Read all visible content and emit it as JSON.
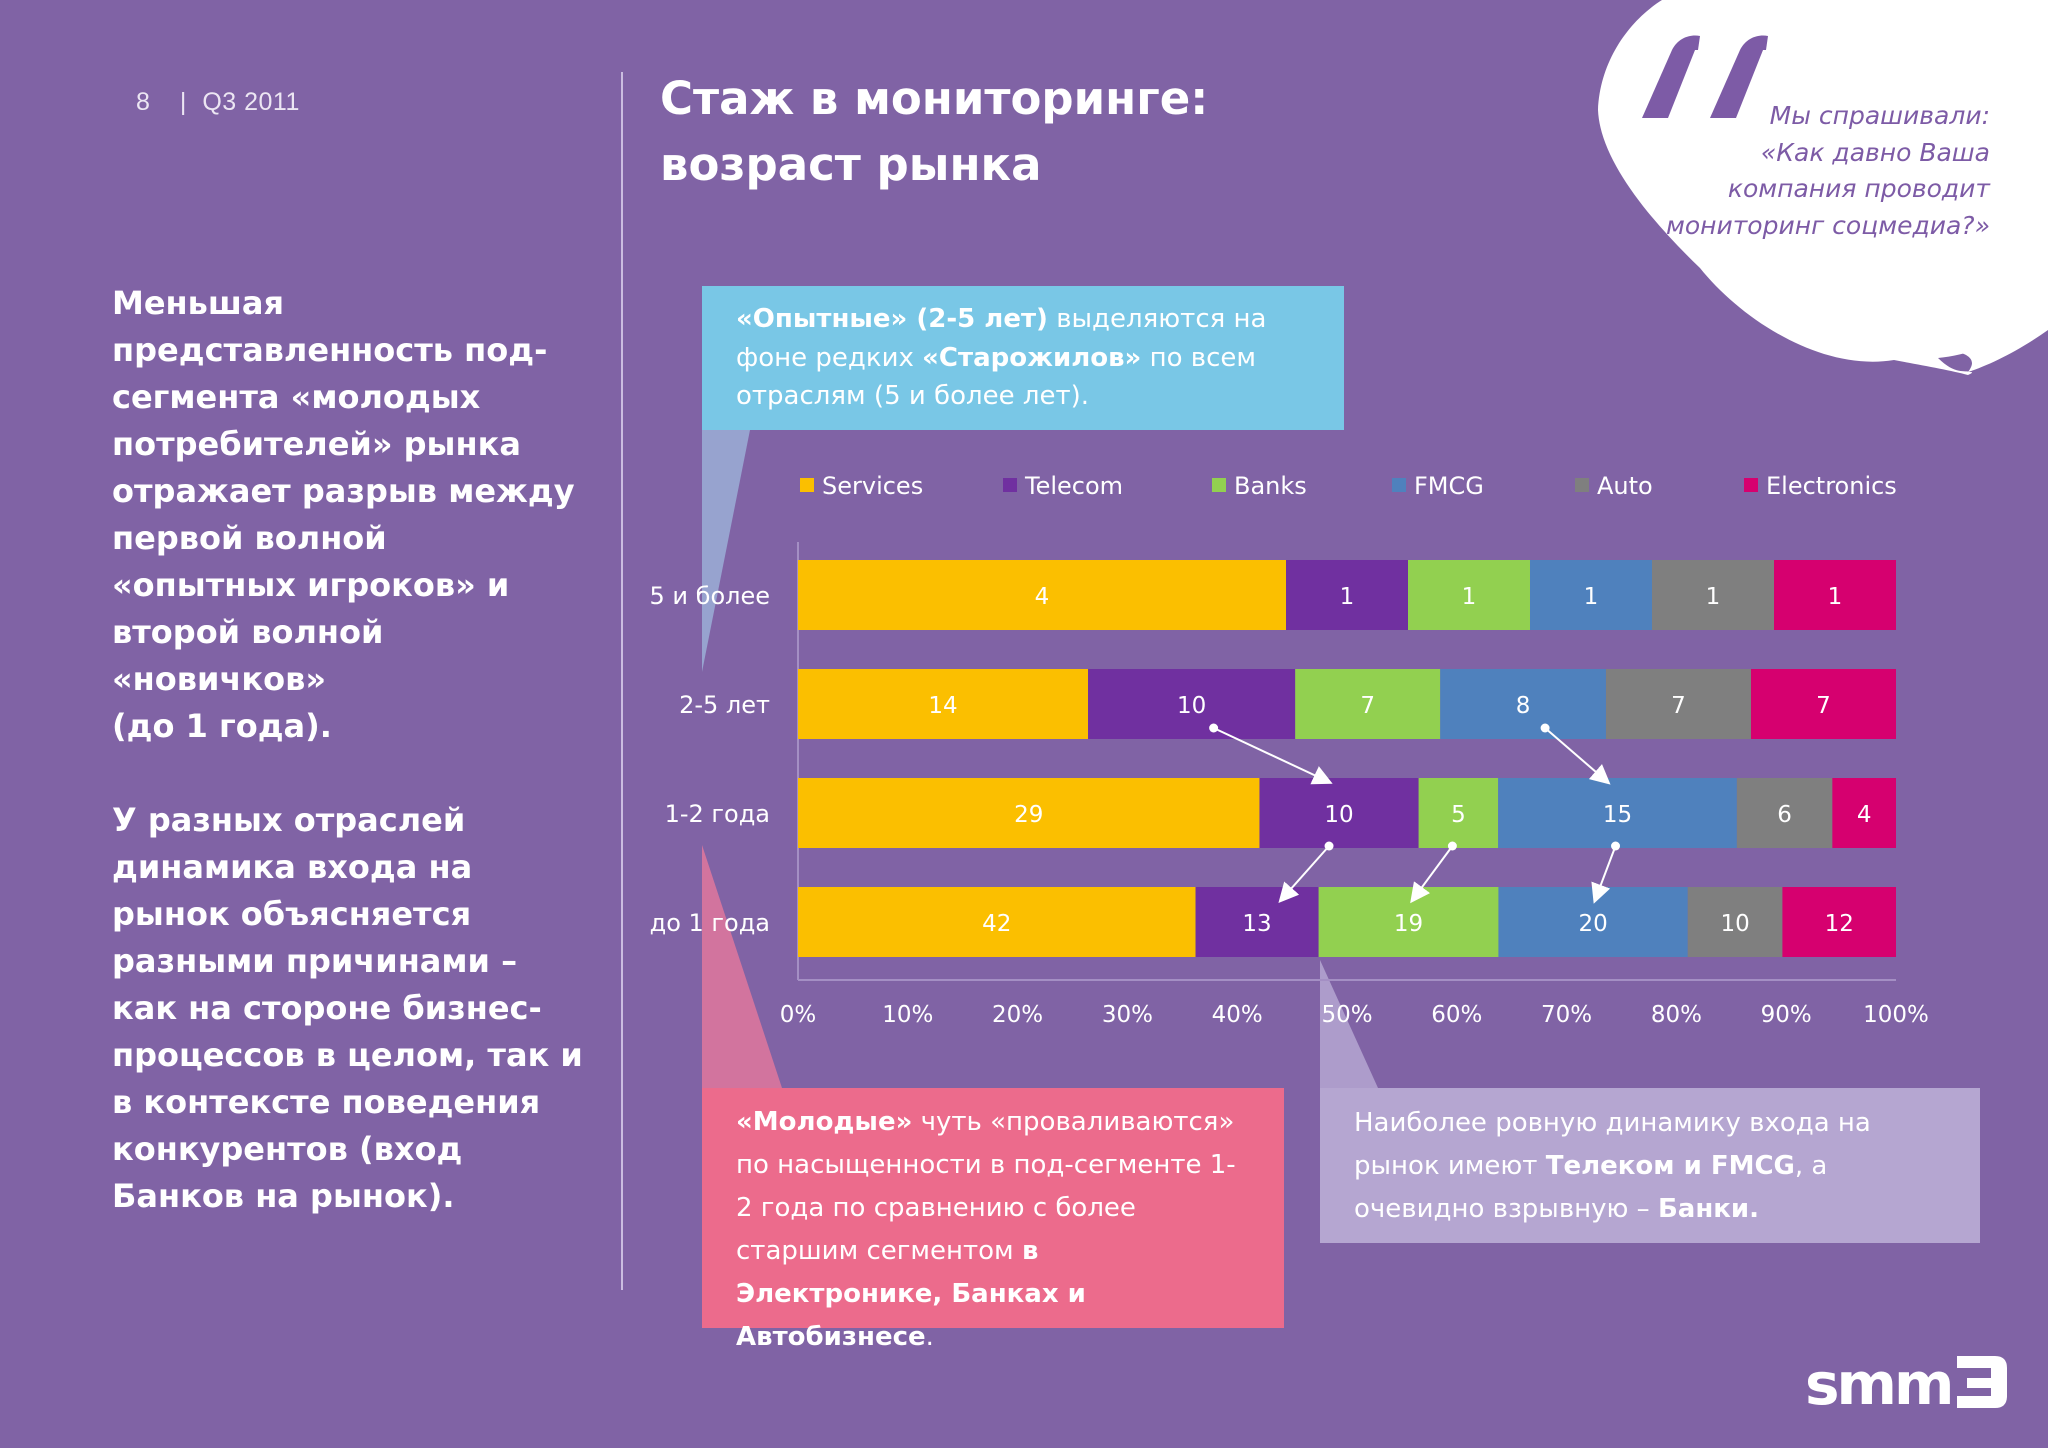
{
  "header": {
    "page_number": "8",
    "separator": "|",
    "period": "Q3 2011"
  },
  "title": {
    "line1": "Стаж в мониторинге:",
    "line2": "возраст рынка"
  },
  "left_text": {
    "p1": "Меньшая представленность под-сегмента «молодых потребителей» рынка отражает разрыв между первой волной «опытных игроков» и второй волной «новичков» (до 1 года).",
    "p1_lines": [
      "Меньшая",
      "представленность под-",
      "сегмента «молодых",
      "потребителей» рынка",
      "отражает разрыв между",
      "первой волной",
      "«опытных игроков» и",
      "второй волной",
      "«новичков»",
      "(до 1 года)."
    ],
    "p2_lines": [
      "У разных отраслей",
      "динамика входа на",
      "рынок объясняется",
      "разными причинами –",
      "как на стороне бизнес-",
      "процессов в целом, так и",
      "в контексте поведения",
      "конкурентов (вход",
      "Банков на рынок)."
    ]
  },
  "quote": {
    "lines": [
      "Мы спрашивали:",
      "«Как давно Ваша",
      "компания проводит",
      "мониторинг соцмедиа?»"
    ]
  },
  "callouts": {
    "top": {
      "b1": "«Опытные» (2-5 лет)",
      "t1": " выделяются на фоне редких ",
      "b2": "«Старожилов»",
      "t2": " по всем отраслям (5 и более лет)."
    },
    "bottom": {
      "b1": "«Молодые»",
      "t1": " чуть «проваливаются» по насыщенности в под-сегменте 1-2 года по сравнению с более старшим сегментом ",
      "b2": "в Электронике, Банках и Автобизнесе",
      "t2": "."
    },
    "right": {
      "t1": "Наиболее ровную динамику входа на рынок имеют ",
      "b1": "Телеком и FMCG",
      "t2": ",  а очевидно взрывную – ",
      "b2": "Банки."
    }
  },
  "chart_data": {
    "type": "bar",
    "orientation": "horizontal",
    "stacked": "percent",
    "categories": [
      "5 и более",
      "2-5 лет",
      "1-2 года",
      "до 1 года"
    ],
    "series": [
      {
        "name": "Services",
        "color": "#fbbf00",
        "values": [
          4,
          14,
          29,
          42
        ]
      },
      {
        "name": "Telecom",
        "color": "#7030a0",
        "values": [
          1,
          10,
          10,
          13
        ]
      },
      {
        "name": "Banks",
        "color": "#92d050",
        "values": [
          1,
          7,
          5,
          19
        ]
      },
      {
        "name": "FMCG",
        "color": "#4f81bd",
        "values": [
          1,
          8,
          15,
          20
        ]
      },
      {
        "name": "Auto",
        "color": "#7f7f7f",
        "values": [
          1,
          7,
          6,
          10
        ]
      },
      {
        "name": "Electronics",
        "color": "#d6006f",
        "values": [
          1,
          7,
          4,
          12
        ]
      }
    ],
    "xticks": [
      "0%",
      "10%",
      "20%",
      "30%",
      "40%",
      "50%",
      "60%",
      "70%",
      "80%",
      "90%",
      "100%"
    ],
    "xlim": [
      0,
      100
    ],
    "legend_position": "top",
    "grid": false
  },
  "logo": {
    "text": "smm"
  },
  "colors": {
    "background": "#8063a5",
    "callout_top": "#79c7e6",
    "callout_bottom": "#ec6b8c",
    "callout_right": "#b5a6d1",
    "quote_text": "#7d5ba6"
  }
}
